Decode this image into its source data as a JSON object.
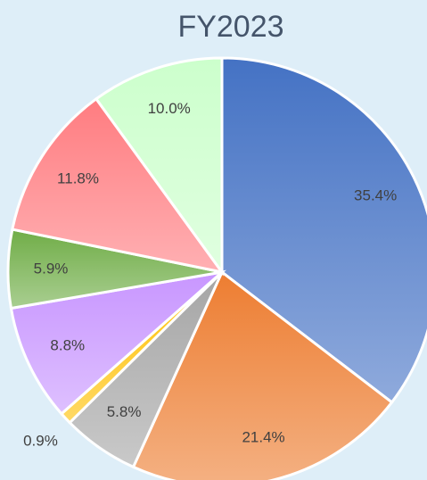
{
  "chart_data": {
    "type": "pie",
    "title": "FY2023",
    "values": [
      35.4,
      21.4,
      5.8,
      0.9,
      8.8,
      5.9,
      11.8,
      10.0
    ],
    "value_labels": [
      "35.4%",
      "21.4%",
      "5.8%",
      "0.9%",
      "8.8%",
      "5.9%",
      "11.8%",
      "10.0%"
    ],
    "colors": [
      "#4472c4",
      "#ed7d31",
      "#a5a5a5",
      "#ffc000",
      "#c896ff",
      "#70ad47",
      "#ff7c80",
      "#ccffcc"
    ]
  }
}
